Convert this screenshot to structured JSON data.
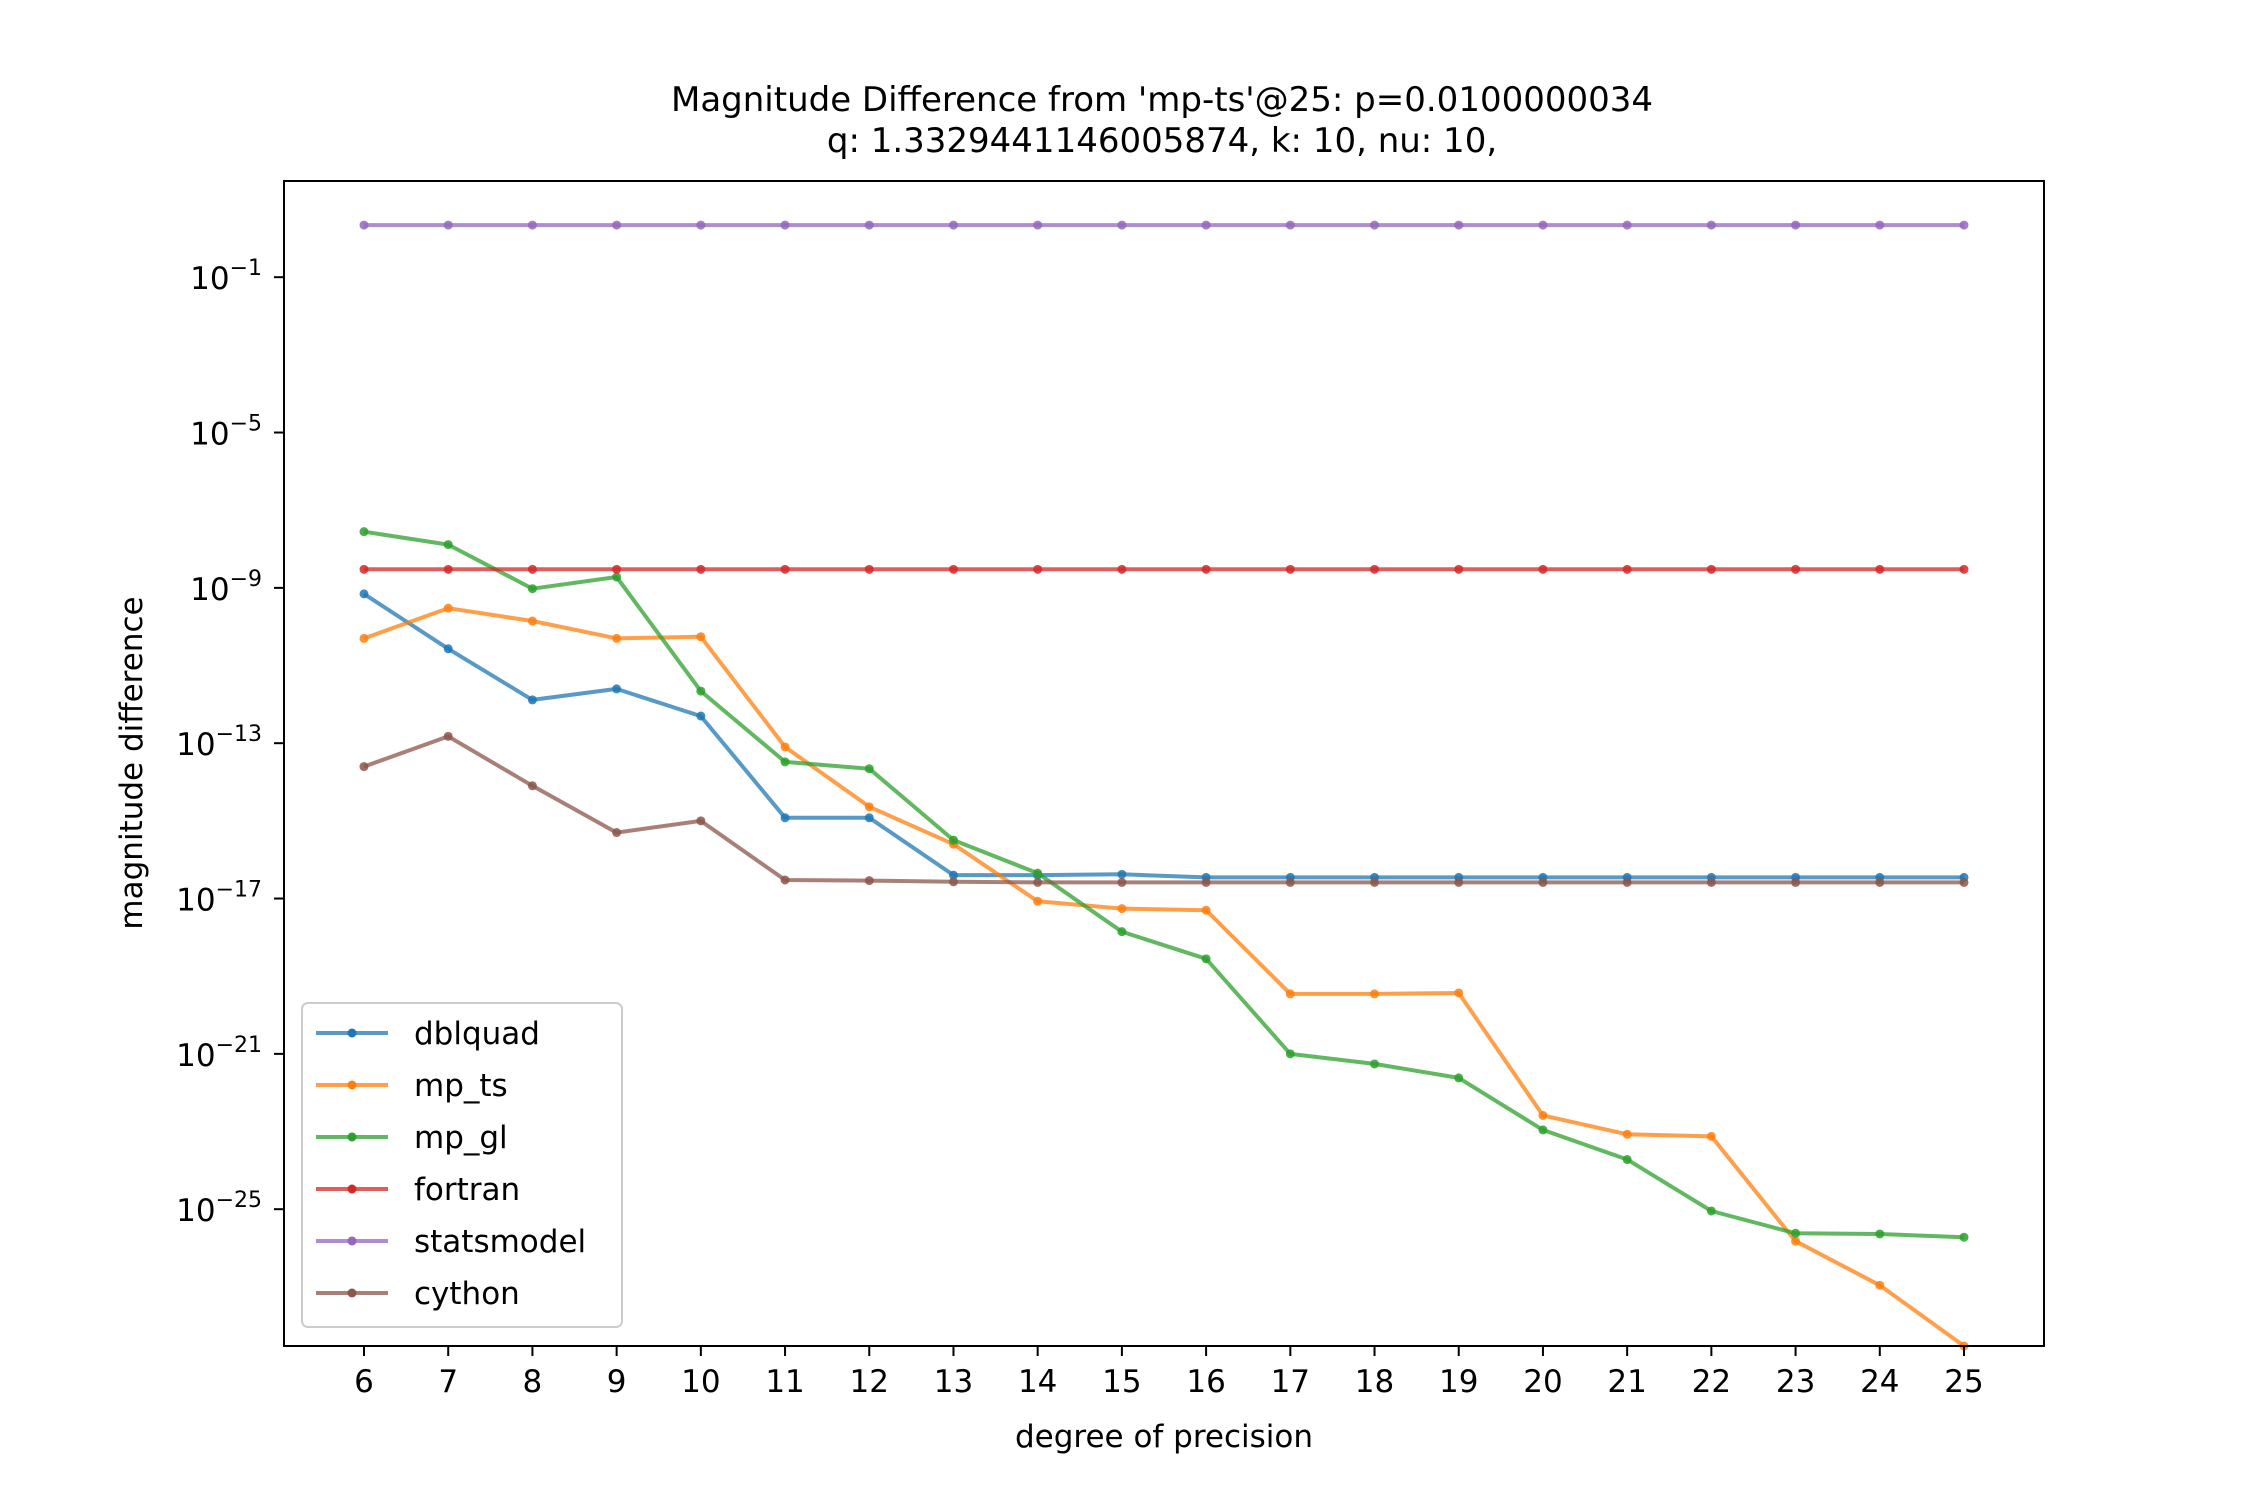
{
  "chart_data": {
    "type": "line",
    "title_line1": "Magnitude Difference from 'mp-ts'@25: p=0.0100000034",
    "title_line2": "q: 1.3329441146005874, k: 10, nu: 10,",
    "xlabel": "degree of precision",
    "ylabel": "magnitude difference",
    "yscale": "log",
    "ylim": [
      3e-29,
      30
    ],
    "x": [
      6,
      7,
      8,
      9,
      10,
      11,
      12,
      13,
      14,
      15,
      16,
      17,
      18,
      19,
      20,
      21,
      22,
      23,
      24,
      25
    ],
    "y_tick_exponents": [
      -1,
      -5,
      -9,
      -13,
      -17,
      -21,
      -25
    ],
    "grid": false,
    "legend_position": "lower-left",
    "series": [
      {
        "name": "dblquad",
        "color": "#1f77b4",
        "values": [
          7e-10,
          2.7e-11,
          1.3e-12,
          2.5e-12,
          5e-13,
          1.2e-15,
          1.2e-15,
          4e-17,
          4e-17,
          4.2e-17,
          3.5e-17,
          3.5e-17,
          3.5e-17,
          3.5e-17,
          3.5e-17,
          3.5e-17,
          3.5e-17,
          3.5e-17,
          3.5e-17,
          3.5e-17
        ]
      },
      {
        "name": "mp_ts",
        "color": "#ff7f0e",
        "values": [
          5e-11,
          3e-10,
          1.4e-10,
          5e-11,
          5.5e-11,
          8e-14,
          2.3e-15,
          2.5e-16,
          8.5e-18,
          5.5e-18,
          5e-18,
          3.5e-20,
          3.5e-20,
          3.7e-20,
          2.6e-23,
          8.5e-24,
          7.5e-24,
          1.5e-26,
          1.1e-27,
          3e-29
        ]
      },
      {
        "name": "mp_gl",
        "color": "#2ca02c",
        "values": [
          2.8e-08,
          1.3e-08,
          9.5e-10,
          1.9e-09,
          2.2e-12,
          3.3e-14,
          2.2e-14,
          3.2e-16,
          4.5e-17,
          1.4e-18,
          2.8e-19,
          1e-21,
          5.5e-22,
          2.4e-22,
          1.1e-23,
          1.9e-24,
          9e-26,
          2.4e-26,
          2.3e-26,
          1.9e-26
        ]
      },
      {
        "name": "fortran",
        "color": "#d62728",
        "values": [
          3e-09,
          3e-09,
          3e-09,
          3e-09,
          3e-09,
          3e-09,
          3e-09,
          3e-09,
          3e-09,
          3e-09,
          3e-09,
          3e-09,
          3e-09,
          3e-09,
          3e-09,
          3e-09,
          3e-09,
          3e-09,
          3e-09,
          3e-09
        ]
      },
      {
        "name": "statsmodel",
        "color": "#9467bd",
        "values": [
          2.2,
          2.2,
          2.2,
          2.2,
          2.2,
          2.2,
          2.2,
          2.2,
          2.2,
          2.2,
          2.2,
          2.2,
          2.2,
          2.2,
          2.2,
          2.2,
          2.2,
          2.2,
          2.2,
          2.2
        ]
      },
      {
        "name": "cython",
        "color": "#8c564b",
        "values": [
          2.5e-14,
          1.5e-13,
          8e-15,
          5e-16,
          1e-15,
          3e-17,
          2.9e-17,
          2.7e-17,
          2.6e-17,
          2.6e-17,
          2.6e-17,
          2.6e-17,
          2.6e-17,
          2.6e-17,
          2.6e-17,
          2.6e-17,
          2.6e-17,
          2.6e-17,
          2.6e-17,
          2.6e-17
        ]
      }
    ]
  }
}
